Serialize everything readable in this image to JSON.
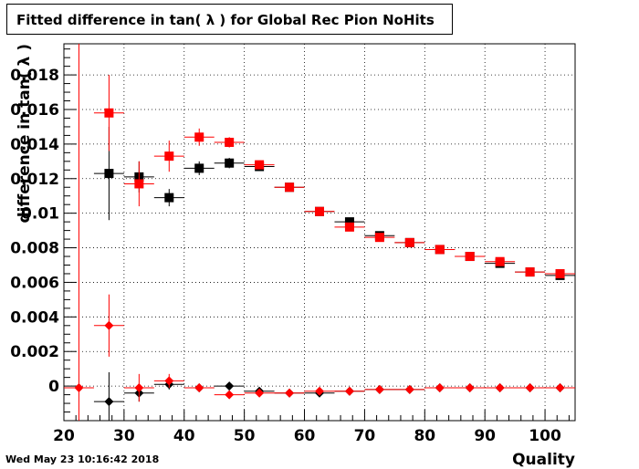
{
  "chart_data": {
    "type": "scatter",
    "title": "Fitted difference in tan( λ ) for Global Rec Pion NoHits",
    "xlabel": "Quality",
    "ylabel": "difference in tan( λ )",
    "xlim": [
      20,
      105
    ],
    "ylim": [
      -0.002,
      0.0198
    ],
    "x_ticks": [
      20,
      30,
      40,
      50,
      60,
      70,
      80,
      90,
      100
    ],
    "y_ticks": [
      0,
      0.002,
      0.004,
      0.006,
      0.008,
      0.01,
      0.012,
      0.014,
      0.016,
      0.018
    ],
    "x_tick_labels": [
      "20",
      "30",
      "40",
      "50",
      "60",
      "70",
      "80",
      "90",
      "100"
    ],
    "y_tick_labels": [
      "0",
      "0.002",
      "0.004",
      "0.006",
      "0.008",
      "0.01",
      "0.012",
      "0.014",
      "0.016",
      "0.018"
    ],
    "grid": true,
    "bin_width": 5,
    "series": [
      {
        "color": "#000000",
        "marker": "square",
        "x": [
          27.5,
          32.5,
          37.5,
          42.5,
          47.5,
          52.5,
          57.5,
          62.5,
          67.5,
          72.5,
          77.5,
          82.5,
          87.5,
          92.5,
          97.5,
          102.5
        ],
        "y": [
          0.0123,
          0.0121,
          0.0109,
          0.0126,
          0.0129,
          0.0127,
          0.0115,
          0.0101,
          0.0095,
          0.0087,
          0.0083,
          0.0079,
          0.0075,
          0.0071,
          0.0066,
          0.0064
        ],
        "yerr": [
          0.0027,
          0.0009,
          0.0005,
          0.0004,
          0.0003,
          0.0002,
          0.0001,
          0.0001,
          0.0001,
          0.0001,
          0.0001,
          0.0001,
          0.0001,
          0.0001,
          0.0001,
          0.0001
        ]
      },
      {
        "color": "#ff0000",
        "marker": "square",
        "x": [
          27.5,
          32.5,
          37.5,
          42.5,
          47.5,
          52.5,
          57.5,
          62.5,
          67.5,
          72.5,
          77.5,
          82.5,
          87.5,
          92.5,
          97.5,
          102.5
        ],
        "y": [
          0.0158,
          0.0117,
          0.0133,
          0.0144,
          0.0141,
          0.0128,
          0.0115,
          0.0101,
          0.0092,
          0.0086,
          0.0083,
          0.0079,
          0.0075,
          0.0072,
          0.0066,
          0.0065
        ],
        "yerr": [
          0.0022,
          0.0013,
          0.0009,
          0.0005,
          0.0003,
          0.0002,
          0.0001,
          0.0001,
          0.0001,
          0.0001,
          0.0001,
          0.0001,
          0.0001,
          0.0001,
          0.0001,
          0.0001
        ]
      },
      {
        "color": "#000000",
        "marker": "diamond",
        "x": [
          27.5,
          32.5,
          37.5,
          42.5,
          47.5,
          52.5,
          57.5,
          62.5,
          67.5,
          72.5,
          77.5,
          82.5,
          87.5,
          92.5,
          97.5,
          102.5
        ],
        "y": [
          -0.0009,
          -0.0004,
          0.0001,
          -0.0001,
          0.0,
          -0.0003,
          -0.0004,
          -0.0004,
          -0.0003,
          -0.0002,
          -0.0002,
          -0.0001,
          -0.0001,
          -0.0001,
          -0.0001,
          -0.0001
        ],
        "yerr": [
          0.0017,
          0.0005,
          0.0003,
          0.0002,
          0.0001,
          0.0001,
          0.0001,
          0.0001,
          0.0001,
          0.0001,
          0.0001,
          0.0001,
          0.0001,
          0.0001,
          0.0001,
          0.0001
        ]
      },
      {
        "color": "#ff0000",
        "marker": "diamond",
        "x": [
          22.5,
          27.5,
          32.5,
          37.5,
          42.5,
          47.5,
          52.5,
          57.5,
          62.5,
          67.5,
          72.5,
          77.5,
          82.5,
          87.5,
          92.5,
          97.5,
          102.5
        ],
        "y": [
          -0.0001,
          0.0035,
          -0.0001,
          0.0003,
          -0.0001,
          -0.0005,
          -0.0004,
          -0.0004,
          -0.0003,
          -0.0003,
          -0.0002,
          -0.0002,
          -0.0001,
          -0.0001,
          -0.0001,
          -0.0001,
          -0.0001
        ],
        "yerr": [
          0.0199,
          0.0018,
          0.0008,
          0.0004,
          0.0002,
          0.0001,
          0.0001,
          0.0001,
          0.0001,
          0.0001,
          0.0001,
          0.0001,
          0.0001,
          0.0001,
          0.0001,
          0.0001,
          0.0001
        ]
      }
    ]
  },
  "timestamp": "Wed May 23 10:16:42 2018"
}
